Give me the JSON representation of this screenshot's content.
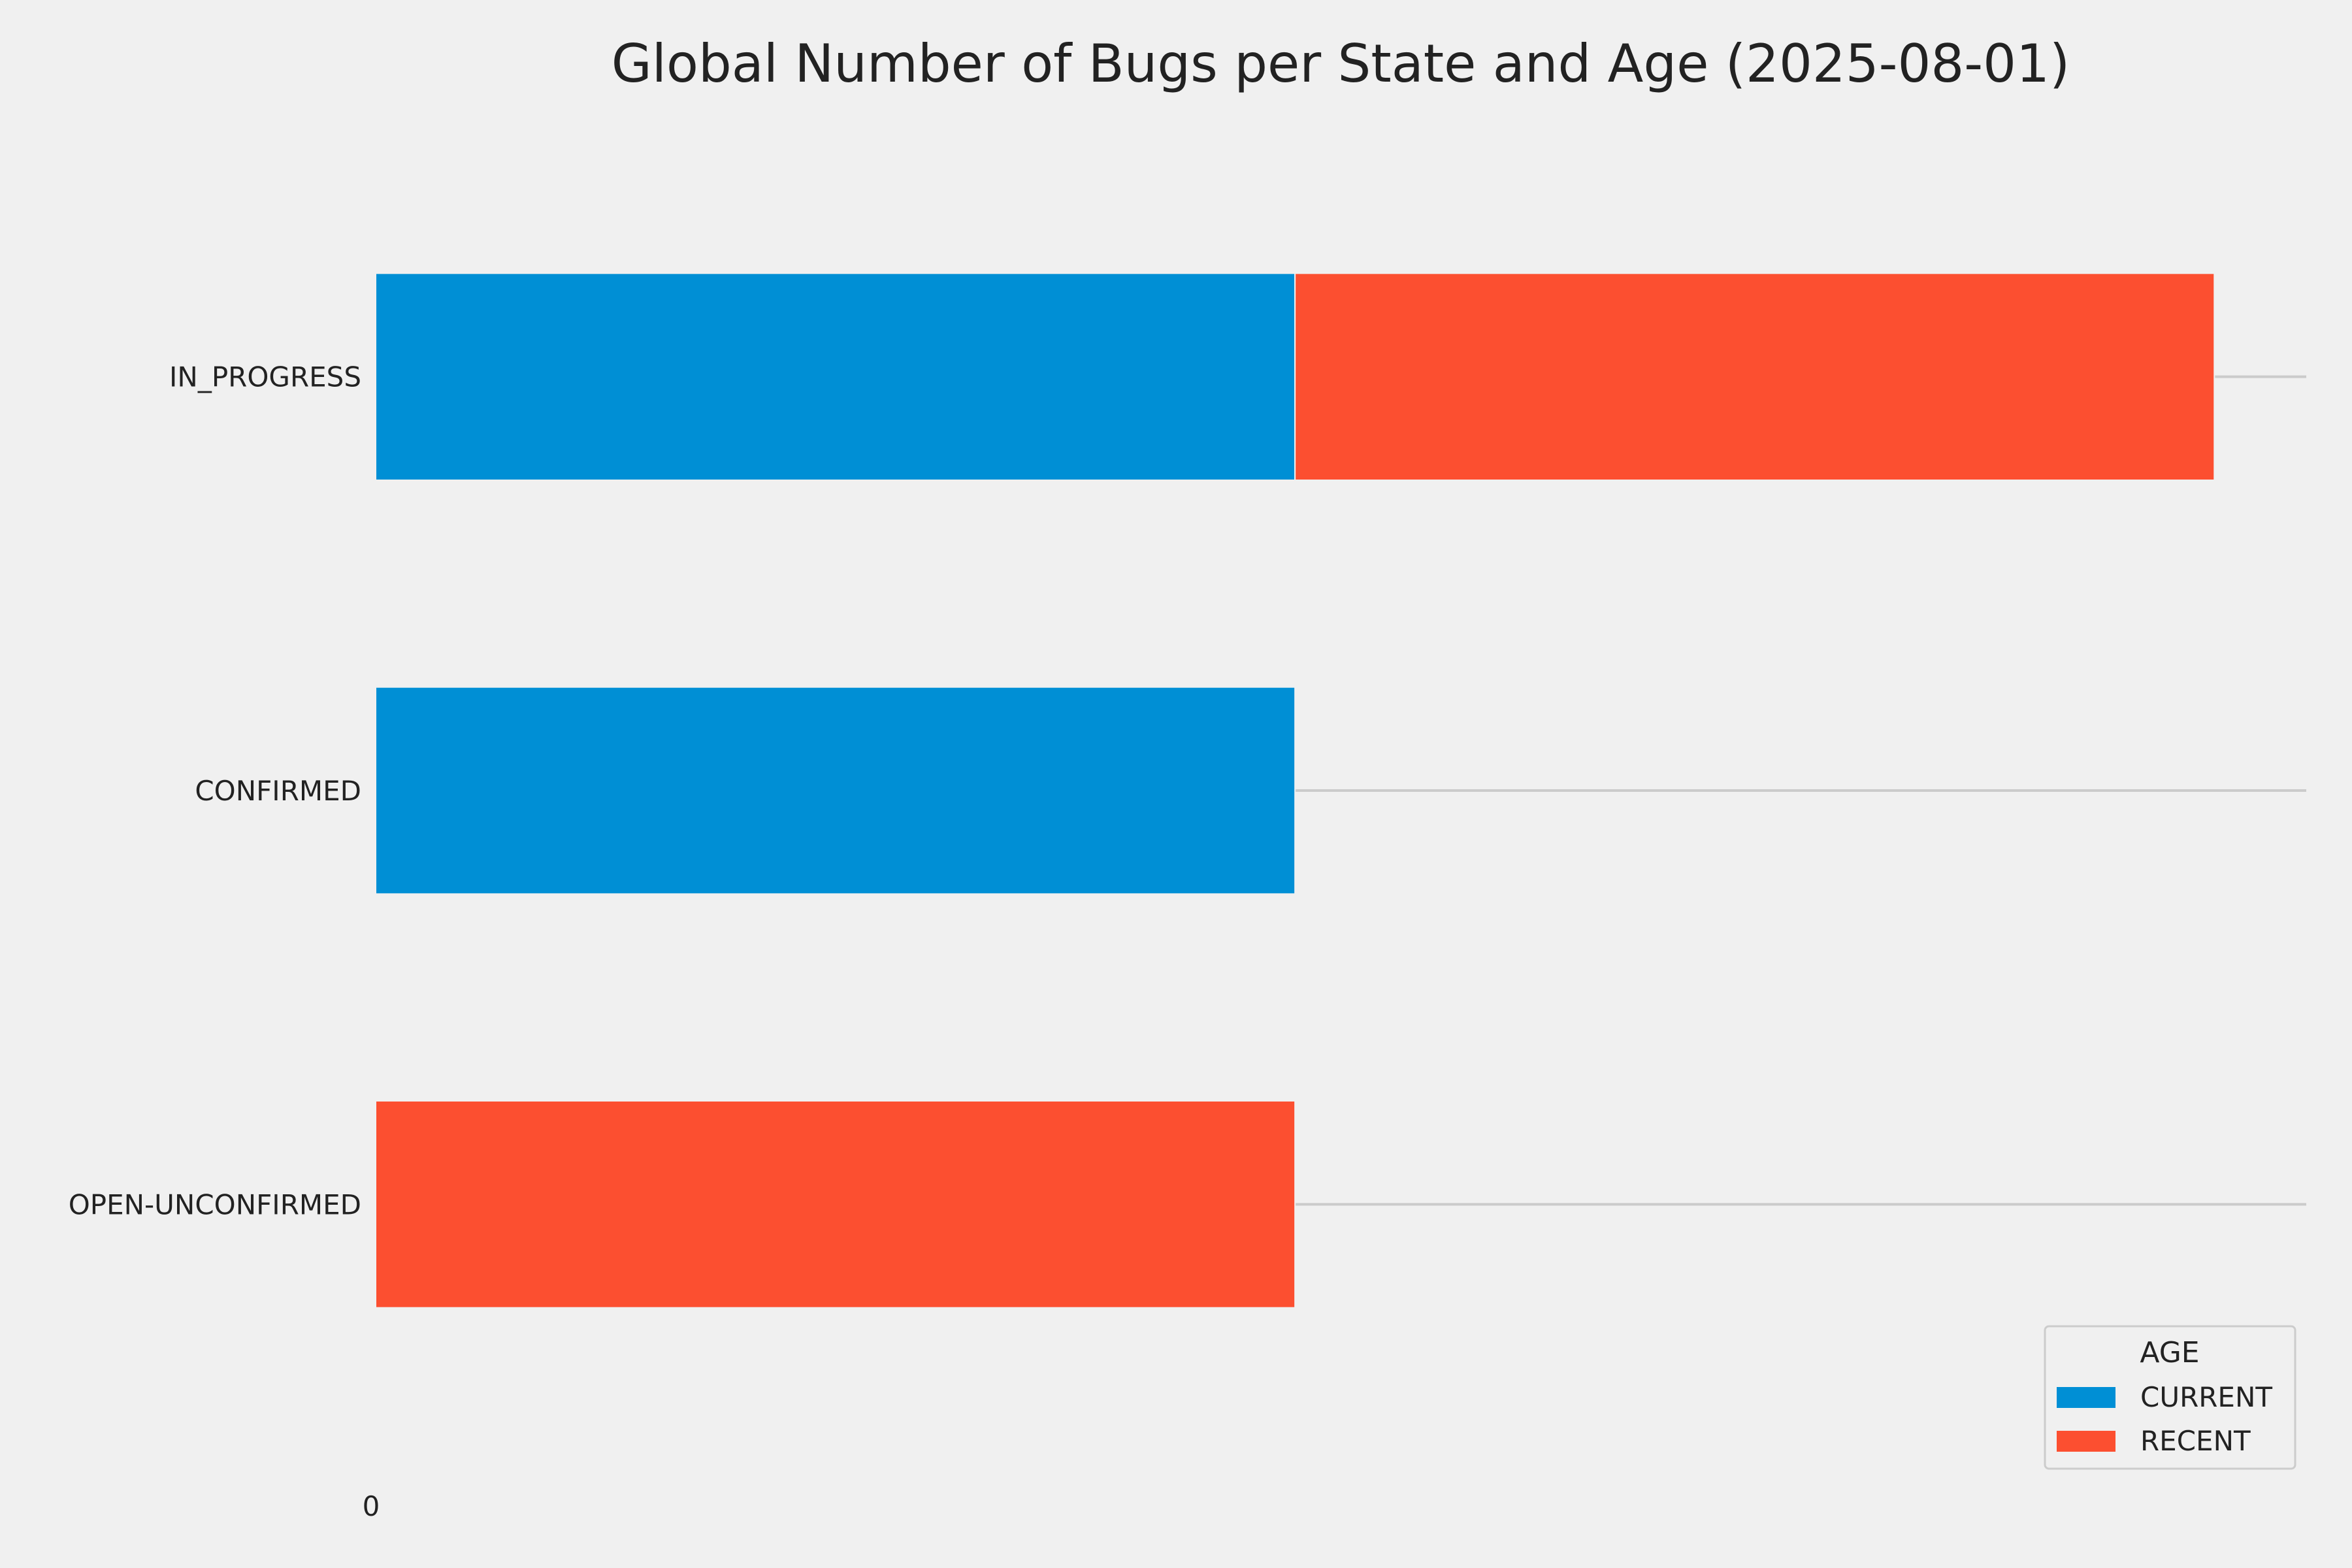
{
  "chart_data": {
    "type": "bar",
    "orientation": "horizontal",
    "stacked": true,
    "title": "Global Number of Bugs per State and Age (2025-08-01)",
    "categories": [
      "IN_PROGRESS",
      "CONFIRMED",
      "OPEN-UNCONFIRMED"
    ],
    "series": [
      {
        "name": "CURRENT",
        "color": "#008fd5",
        "values": [
          1,
          1,
          0
        ]
      },
      {
        "name": "RECENT",
        "color": "#fc4f30",
        "values": [
          1,
          0,
          1
        ]
      }
    ],
    "xlim": [
      0,
      2.1
    ],
    "x_ticks": [
      0
    ],
    "x_tick_labels": [
      "0"
    ],
    "grid": true,
    "legend": {
      "title": "AGE",
      "position": "bottom-right",
      "entries": [
        "CURRENT",
        "RECENT"
      ]
    },
    "colors": {
      "background": "#f0f0f0",
      "grid": "#cbcbcb",
      "text": "#222222",
      "legend_bg": "#f0f0f0",
      "legend_border": "#cccccc"
    }
  }
}
